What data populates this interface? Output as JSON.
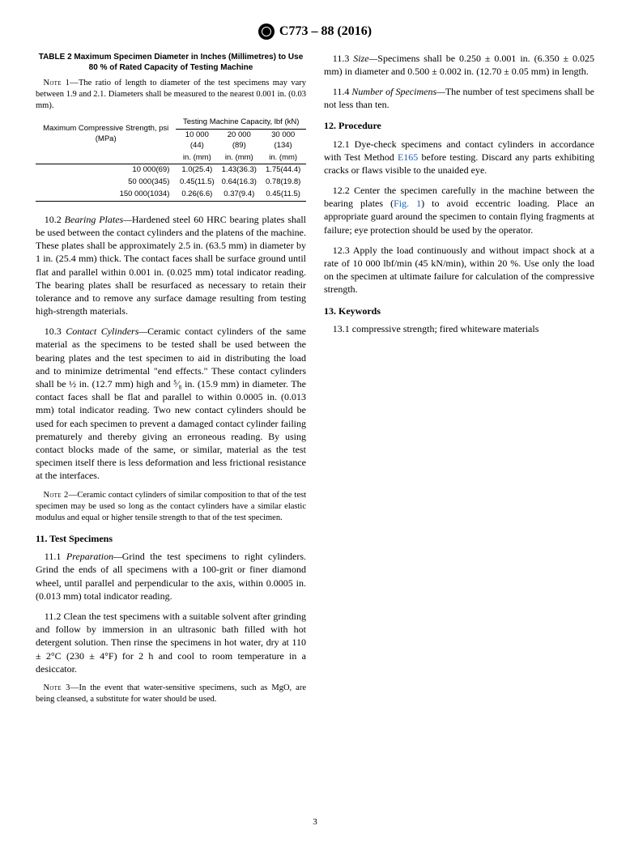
{
  "header": {
    "designation": "C773 – 88 (2016)"
  },
  "table2": {
    "title": "TABLE 2 Maximum Specimen Diameter in Inches (Millimetres) to Use 80 % of Rated Capacity of Testing Machine",
    "note_label": "Note 1—",
    "note_text": "The ratio of length to diameter of the test specimens may vary between 1.9 and 2.1. Diameters shall be measured to the nearest 0.001 in. (0.03 mm).",
    "col_group_label": "Maximum Compressive Strength, psi (MPa)",
    "span_label": "Testing Machine Capacity, lbf (kN)",
    "cols": [
      "10 000 (44)",
      "20 000 (89)",
      "30 000 (134)"
    ],
    "unit_cols": [
      "in. (mm)",
      "in. (mm)",
      "in. (mm)"
    ],
    "rows": [
      {
        "label": "10 000(69)",
        "c1": "1.0(25.4)",
        "c2": "1.43(36.3)",
        "c3": "1.75(44.4)"
      },
      {
        "label": "50 000(345)",
        "c1": "0.45(11.5)",
        "c2": "0.64(16.3)",
        "c3": "0.78(19.8)"
      },
      {
        "label": "150 000(1034)",
        "c1": "0.26(6.6)",
        "c2": "0.37(9.4)",
        "c3": "0.45(11.5)"
      }
    ]
  },
  "para_10_2": {
    "lead": "10.2 ",
    "ital": "Bearing Plates—",
    "text": "Hardened steel 60 HRC bearing plates shall be used between the contact cylinders and the platens of the machine. These plates shall be approximately 2.5 in. (63.5 mm) in diameter by 1 in. (25.4 mm) thick. The contact faces shall be surface ground until flat and parallel within 0.001 in. (0.025 mm) total indicator reading. The bearing plates shall be resurfaced as necessary to retain their tolerance and to remove any surface damage resulting from testing high-strength materials."
  },
  "para_10_3": {
    "lead": "10.3 ",
    "ital": "Contact Cylinders—",
    "text": "Ceramic contact cylinders of the same material as the specimens to be tested shall be used between the bearing plates and the test specimen to aid in distributing the load and to minimize detrimental \"end effects.\" These contact cylinders shall be ½ in. (12.7 mm) high and ⁵⁄₈ in. (15.9 mm) in diameter. The contact faces shall be flat and parallel to within 0.0005 in. (0.013 mm) total indicator reading. Two new contact cylinders should be used for each specimen to prevent a damaged contact cylinder failing prematurely and thereby giving an erroneous reading. By using contact blocks made of the same, or similar, material as the test specimen itself there is less deformation and less frictional resistance at the interfaces."
  },
  "note2": {
    "label": "Note 2—",
    "text": "Ceramic contact cylinders of similar composition to that of the test specimen may be used so long as the contact cylinders have a similar elastic modulus and equal or higher tensile strength to that of the test specimen."
  },
  "sec11": {
    "head": "11. Test Specimens",
    "p1_lead": "11.1 ",
    "p1_ital": "Preparation—",
    "p1_text": "Grind the test specimens to right cylinders. Grind the ends of all specimens with a 100-grit or finer diamond wheel, until parallel and perpendicular to the axis, within 0.0005 in. (0.013 mm) total indicator reading.",
    "p2": "11.2 Clean the test specimens with a suitable solvent after grinding and follow by immersion in an ultrasonic bath filled with hot detergent solution. Then rinse the specimens in hot water, dry at 110 ± 2°C (230 ± 4°F) for 2 h and cool to room temperature in a desiccator.",
    "note3_label": "Note 3—",
    "note3_text": "In the event that water-sensitive specimens, such as MgO, are being cleansed, a substitute for water should be used.",
    "p3_lead": "11.3 ",
    "p3_ital": "Size—",
    "p3_text": "Specimens shall be 0.250 ± 0.001 in. (6.350 ± 0.025 mm) in diameter and 0.500 ± 0.002 in. (12.70 ± 0.05 mm) in length.",
    "p4_lead": "11.4 ",
    "p4_ital": "Number of Specimens—",
    "p4_text": "The number of test specimens shall be not less than ten."
  },
  "sec12": {
    "head": "12. Procedure",
    "p1_a": "12.1 Dye-check specimens and contact cylinders in accordance with Test Method ",
    "p1_link": "E165",
    "p1_b": " before testing. Discard any parts exhibiting cracks or flaws visible to the unaided eye.",
    "p2_a": "12.2 Center the specimen carefully in the machine between the bearing plates (",
    "p2_link": "Fig. 1",
    "p2_b": ") to avoid eccentric loading. Place an appropriate guard around the specimen to contain flying fragments at failure; eye protection should be used by the operator.",
    "p3": "12.3 Apply the load continuously and without impact shock at a rate of 10 000 lbf/min (45 kN/min), within 20 %. Use only the load on the specimen at ultimate failure for calculation of the compressive strength."
  },
  "sec13": {
    "head": "13. Keywords",
    "p1": "13.1 compressive strength; fired whiteware materials"
  },
  "page_number": "3"
}
